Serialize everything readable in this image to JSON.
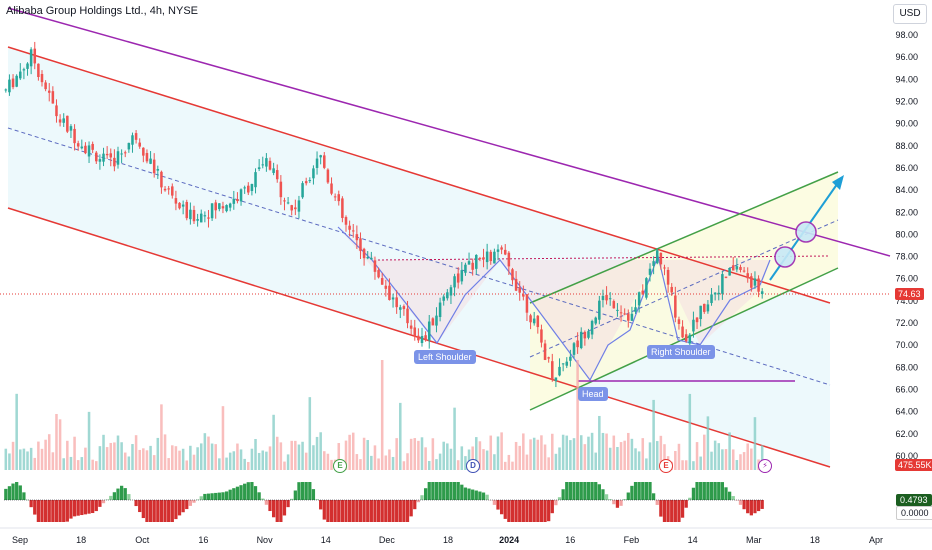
{
  "header": {
    "title": "Alibaba Group Holdings Ltd., 4h, NYSE",
    "currency_button": "USD"
  },
  "price_tags": {
    "last_price": "74.63",
    "volume": "475.55K",
    "oscillator_top": "0.4793",
    "oscillator_bottom": "0.0000"
  },
  "chart_data": {
    "type": "candlestick",
    "title": "Alibaba Group Holdings Ltd., 4h, NYSE",
    "y_axis_ticks": [
      "98.00",
      "96.00",
      "94.00",
      "92.00",
      "90.00",
      "88.00",
      "86.00",
      "84.00",
      "82.00",
      "80.00",
      "78.00",
      "76.00",
      "74.00",
      "72.00",
      "70.00",
      "68.00",
      "66.00",
      "64.00",
      "62.00",
      "60.00"
    ],
    "ylim": [
      60,
      99
    ],
    "x_axis_ticks": [
      "Sep",
      "18",
      "Oct",
      "16",
      "Nov",
      "14",
      "Dec",
      "18",
      "2024",
      "16",
      "Feb",
      "14",
      "Mar",
      "18",
      "Apr"
    ],
    "last_price": 74.63,
    "price_path": [
      [
        "Sep",
        93.0
      ],
      [
        "Sep +3d",
        96.2
      ],
      [
        "18",
        90.5
      ],
      [
        "25",
        88.0
      ],
      [
        "Oct",
        86.3
      ],
      [
        "Oct +5d",
        89.0
      ],
      [
        "16",
        84.5
      ],
      [
        "23",
        81.5
      ],
      [
        "30",
        82.3
      ],
      [
        "Nov",
        83.5
      ],
      [
        "Nov +5d",
        86.5
      ],
      [
        "Nov +9d",
        82.0
      ],
      [
        "14",
        87.5
      ],
      [
        "14 +3d",
        80.8
      ],
      [
        "Dec",
        77.5
      ],
      [
        "Dec +5d",
        73.5
      ],
      [
        "Dec +12d",
        70.3
      ],
      [
        "18",
        75.5
      ],
      [
        "25",
        77.5
      ],
      [
        "2024",
        78.3
      ],
      [
        "2024 +6d",
        73.5
      ],
      [
        "16",
        67.2
      ],
      [
        "23",
        70.5
      ],
      [
        "30",
        74.5
      ],
      [
        "Feb",
        72.5
      ],
      [
        "Feb +5d",
        78.5
      ],
      [
        "14",
        70.5
      ],
      [
        "14 +7d",
        74.5
      ],
      [
        "Feb +18d",
        77.2
      ],
      [
        "Mar",
        74.63
      ]
    ],
    "trend_channels": [
      {
        "name": "main-descending-channel",
        "color": "#e53935"
      },
      {
        "name": "long-term-resistance",
        "color": "#9c27b0"
      },
      {
        "name": "ascending-channel",
        "color": "#43a047"
      }
    ],
    "pattern_labels": [
      "Left Shoulder",
      "Head",
      "Right Shoulder"
    ],
    "event_markers": [
      "E",
      "D",
      "E"
    ],
    "volume_last": "475.55K",
    "oscillator_last": 0.4793
  }
}
